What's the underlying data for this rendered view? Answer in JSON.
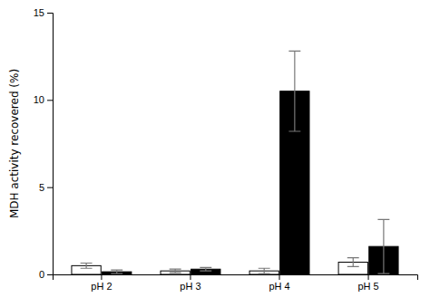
{
  "chart_data": {
    "type": "bar",
    "ylabel": "MDH activity recovered (%)",
    "categories": [
      "pH 2",
      "pH 3",
      "pH 4",
      "pH 5"
    ],
    "series": [
      {
        "color": "#ffffff",
        "values": [
          0.5,
          0.2,
          0.2,
          0.7
        ],
        "errors": [
          0.15,
          0.1,
          0.15,
          0.25
        ]
      },
      {
        "color": "#000000",
        "values": [
          0.15,
          0.3,
          10.5,
          1.6
        ],
        "errors": [
          0.1,
          0.1,
          2.3,
          1.55
        ]
      }
    ],
    "ylim": [
      0,
      15
    ],
    "yticks": [
      0,
      5,
      10,
      15
    ],
    "grid": false
  }
}
